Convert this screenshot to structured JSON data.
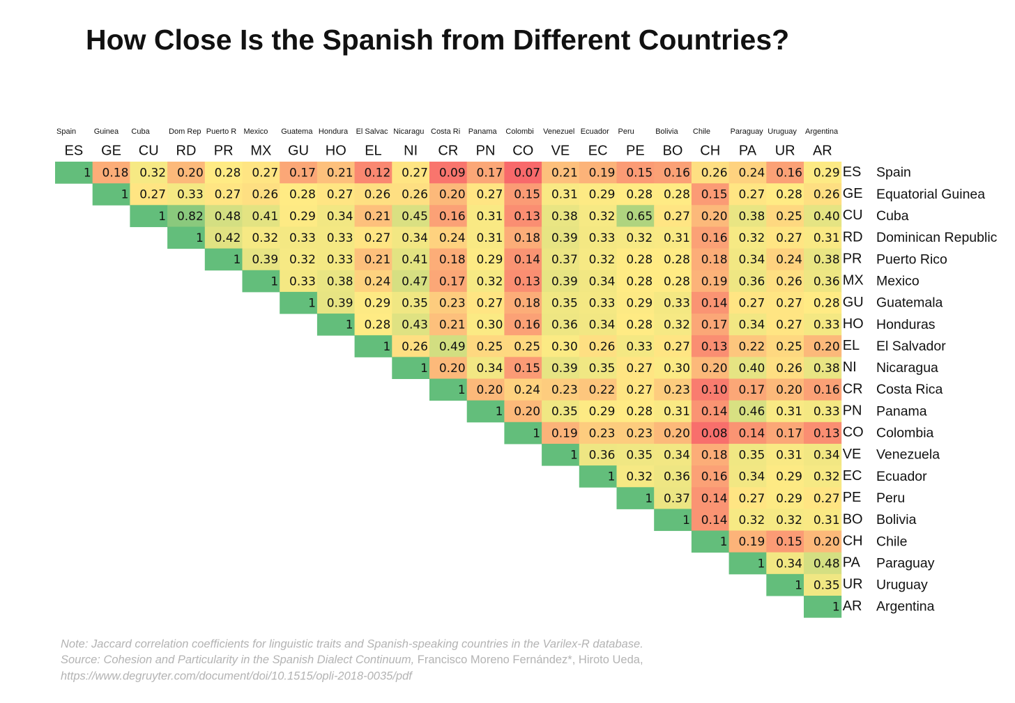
{
  "chart_data": {
    "type": "heatmap",
    "title": "How Close Is the Spanish from Different Countries?",
    "column_names": [
      "Spain",
      "Guinea",
      "Cuba",
      "Dom Rep",
      "Puerto R",
      "Mexico",
      "Guatema",
      "Hondura",
      "El Salvac",
      "Nicaragu",
      "Costa Ri",
      "Panama",
      "Colombi",
      "Venezuel",
      "Ecuador",
      "Peru",
      "Bolivia",
      "Chile",
      "Paraguay",
      "Uruguay",
      "Argentina"
    ],
    "codes": [
      "ES",
      "GE",
      "CU",
      "RD",
      "PR",
      "MX",
      "GU",
      "HO",
      "EL",
      "NI",
      "CR",
      "PN",
      "CO",
      "VE",
      "EC",
      "PE",
      "BO",
      "CH",
      "PA",
      "UR",
      "AR"
    ],
    "row_names": [
      "Spain",
      "Equatorial Guinea",
      "Cuba",
      "Dominican Republic",
      "Puerto Rico",
      "Mexico",
      "Guatemala",
      "Honduras",
      "El Salvador",
      "Nicaragua",
      "Costa Rica",
      "Panama",
      "Colombia",
      "Venezuela",
      "Ecuador",
      "Peru",
      "Bolivia",
      "Chile",
      "Paraguay",
      "Uruguay",
      "Argentina"
    ],
    "color_scale": {
      "low": "#f8696b",
      "mid": "#ffeb84",
      "high": "#63be7b"
    },
    "rows": [
      {
        "values": [
          1,
          0.18,
          0.32,
          0.2,
          0.28,
          0.27,
          0.17,
          0.21,
          0.12,
          0.27,
          0.09,
          0.17,
          0.07,
          0.21,
          0.19,
          0.15,
          0.16,
          0.26,
          0.24,
          0.16,
          0.29
        ],
        "value_labels": [
          "1",
          "0.18",
          "0.32",
          "0.20",
          "0.28",
          "0.27",
          "0.17",
          "0.21",
          "0.12",
          "0.27",
          "0.09",
          "0.17",
          "0.07",
          "0.21",
          "0.19",
          "0.15",
          "0.16",
          "0.26",
          "0.24",
          "0.16",
          "0.29"
        ]
      },
      {
        "values": [
          1,
          0.27,
          0.33,
          0.27,
          0.26,
          0.28,
          0.27,
          0.26,
          0.26,
          0.2,
          0.27,
          0.15,
          0.31,
          0.29,
          0.28,
          0.28,
          0.15,
          0.27,
          0.28,
          0.26
        ],
        "value_labels": [
          "1",
          "0.27",
          "0.33",
          "0.27",
          "0.26",
          "0.28",
          "0.27",
          "0.26",
          "0.26",
          "0.20",
          "0.27",
          "0.15",
          "0.31",
          "0.29",
          "0.28",
          "0.28",
          "0.15",
          "0.27",
          "0.28",
          "0.26"
        ]
      },
      {
        "values": [
          1,
          0.82,
          0.48,
          0.41,
          0.29,
          0.34,
          0.21,
          0.45,
          0.16,
          0.31,
          0.13,
          0.38,
          0.32,
          0.65,
          0.27,
          0.2,
          0.38,
          0.25,
          0.4
        ],
        "value_labels": [
          "1",
          "0.82",
          "0.48",
          "0.41",
          "0.29",
          "0.34",
          "0.21",
          "0.45",
          "0.16",
          "0.31",
          "0.13",
          "0.38",
          "0.32",
          "0.65",
          "0.27",
          "0.20",
          "0.38",
          "0.25",
          "0.40"
        ]
      },
      {
        "values": [
          1,
          0.42,
          0.32,
          0.33,
          0.33,
          0.27,
          0.34,
          0.24,
          0.31,
          0.18,
          0.39,
          0.33,
          0.32,
          0.31,
          0.16,
          0.32,
          0.27,
          0.31
        ],
        "value_labels": [
          "1",
          "0.42",
          "0.32",
          "0.33",
          "0.33",
          "0.27",
          "0.34",
          "0.24",
          "0.31",
          "0.18",
          "0.39",
          "0.33",
          "0.32",
          "0.31",
          "0.16",
          "0.32",
          "0.27",
          "0.31"
        ]
      },
      {
        "values": [
          1,
          0.39,
          0.32,
          0.33,
          0.21,
          0.41,
          0.18,
          0.29,
          0.14,
          0.37,
          0.32,
          0.28,
          0.28,
          0.18,
          0.34,
          0.24,
          0.38
        ],
        "value_labels": [
          "1",
          "0.39",
          "0.32",
          "0.33",
          "0.21",
          "0.41",
          "0.18",
          "0.29",
          "0.14",
          "0.37",
          "0.32",
          "0.28",
          "0.28",
          "0.18",
          "0.34",
          "0.24",
          "0.38"
        ]
      },
      {
        "values": [
          1,
          0.33,
          0.38,
          0.24,
          0.47,
          0.17,
          0.32,
          0.13,
          0.39,
          0.34,
          0.28,
          0.28,
          0.19,
          0.36,
          0.26,
          0.36
        ],
        "value_labels": [
          "1",
          "0.33",
          "0.38",
          "0.24",
          "0.47",
          "0.17",
          "0.32",
          "0.13",
          "0.39",
          "0.34",
          "0.28",
          "0.28",
          "0.19",
          "0.36",
          "0.26",
          "0.36"
        ]
      },
      {
        "values": [
          1,
          0.39,
          0.29,
          0.35,
          0.23,
          0.27,
          0.18,
          0.35,
          0.33,
          0.29,
          0.33,
          0.14,
          0.27,
          0.27,
          0.28
        ],
        "value_labels": [
          "1",
          "0.39",
          "0.29",
          "0.35",
          "0.23",
          "0.27",
          "0.18",
          "0.35",
          "0.33",
          "0.29",
          "0.33",
          "0.14",
          "0.27",
          "0.27",
          "0.28"
        ]
      },
      {
        "values": [
          1,
          0.28,
          0.43,
          0.21,
          0.3,
          0.16,
          0.36,
          0.34,
          0.28,
          0.32,
          0.17,
          0.34,
          0.27,
          0.33
        ],
        "value_labels": [
          "1",
          "0.28",
          "0.43",
          "0.21",
          "0.30",
          "0.16",
          "0.36",
          "0.34",
          "0.28",
          "0.32",
          "0.17",
          "0.34",
          "0.27",
          "0.33"
        ]
      },
      {
        "values": [
          1,
          0.26,
          0.49,
          0.25,
          0.25,
          0.3,
          0.26,
          0.33,
          0.27,
          0.13,
          0.22,
          0.25,
          0.2
        ],
        "value_labels": [
          "1",
          "0.26",
          "0.49",
          "0.25",
          "0.25",
          "0.30",
          "0.26",
          "0.33",
          "0.27",
          "0.13",
          "0.22",
          "0.25",
          "0.20"
        ]
      },
      {
        "values": [
          1,
          0.2,
          0.34,
          0.15,
          0.39,
          0.35,
          0.27,
          0.3,
          0.2,
          0.4,
          0.26,
          0.38
        ],
        "value_labels": [
          "1",
          "0.20",
          "0.34",
          "0.15",
          "0.39",
          "0.35",
          "0.27",
          "0.30",
          "0.20",
          "0.40",
          "0.26",
          "0.38"
        ]
      },
      {
        "values": [
          1,
          0.2,
          0.24,
          0.23,
          0.22,
          0.27,
          0.23,
          0.1,
          0.17,
          0.2,
          0.16
        ],
        "value_labels": [
          "1",
          "0.20",
          "0.24",
          "0.23",
          "0.22",
          "0.27",
          "0.23",
          "0.10",
          "0.17",
          "0.20",
          "0.16"
        ]
      },
      {
        "values": [
          1,
          0.2,
          0.35,
          0.29,
          0.28,
          0.31,
          0.14,
          0.46,
          0.31,
          0.33
        ],
        "value_labels": [
          "1",
          "0.20",
          "0.35",
          "0.29",
          "0.28",
          "0.31",
          "0.14",
          "0.46",
          "0.31",
          "0.33"
        ]
      },
      {
        "values": [
          1,
          0.19,
          0.23,
          0.23,
          0.2,
          0.08,
          0.14,
          0.17,
          0.13
        ],
        "value_labels": [
          "1",
          "0.19",
          "0.23",
          "0.23",
          "0.20",
          "0.08",
          "0.14",
          "0.17",
          "0.13"
        ]
      },
      {
        "values": [
          1,
          0.36,
          0.35,
          0.34,
          0.18,
          0.35,
          0.31,
          0.34
        ],
        "value_labels": [
          "1",
          "0.36",
          "0.35",
          "0.34",
          "0.18",
          "0.35",
          "0.31",
          "0.34"
        ]
      },
      {
        "values": [
          1,
          0.32,
          0.36,
          0.16,
          0.34,
          0.29,
          0.32
        ],
        "value_labels": [
          "1",
          "0.32",
          "0.36",
          "0.16",
          "0.34",
          "0.29",
          "0.32"
        ]
      },
      {
        "values": [
          1,
          0.37,
          0.14,
          0.27,
          0.29,
          0.27
        ],
        "value_labels": [
          "1",
          "0.37",
          "0.14",
          "0.27",
          "0.29",
          "0.27"
        ]
      },
      {
        "values": [
          1,
          0.14,
          0.32,
          0.32,
          0.31
        ],
        "value_labels": [
          "1",
          "0.14",
          "0.32",
          "0.32",
          "0.31"
        ]
      },
      {
        "values": [
          1,
          0.19,
          0.15,
          0.2
        ],
        "value_labels": [
          "1",
          "0.19",
          "0.15",
          "0.20"
        ]
      },
      {
        "values": [
          1,
          0.34,
          0.48
        ],
        "value_labels": [
          "1",
          "0.34",
          "0.48"
        ]
      },
      {
        "values": [
          1,
          0.35
        ],
        "value_labels": [
          "1",
          "0.35"
        ]
      },
      {
        "values": [
          1
        ],
        "value_labels": [
          "1"
        ]
      }
    ],
    "note": "Note: Jaccard correlation coefficients for linguistic traits and Spanish-speaking countries in the Varilex-R database.",
    "source_title": "Source: Cohesion and Particularity in the Spanish Dialect Continuum,",
    "source_authors": "Francisco Moreno Fernández*, Hiroto Ueda,",
    "url": "https://www.degruyter.com/document/doi/10.1515/opli-2018-0035/pdf"
  }
}
